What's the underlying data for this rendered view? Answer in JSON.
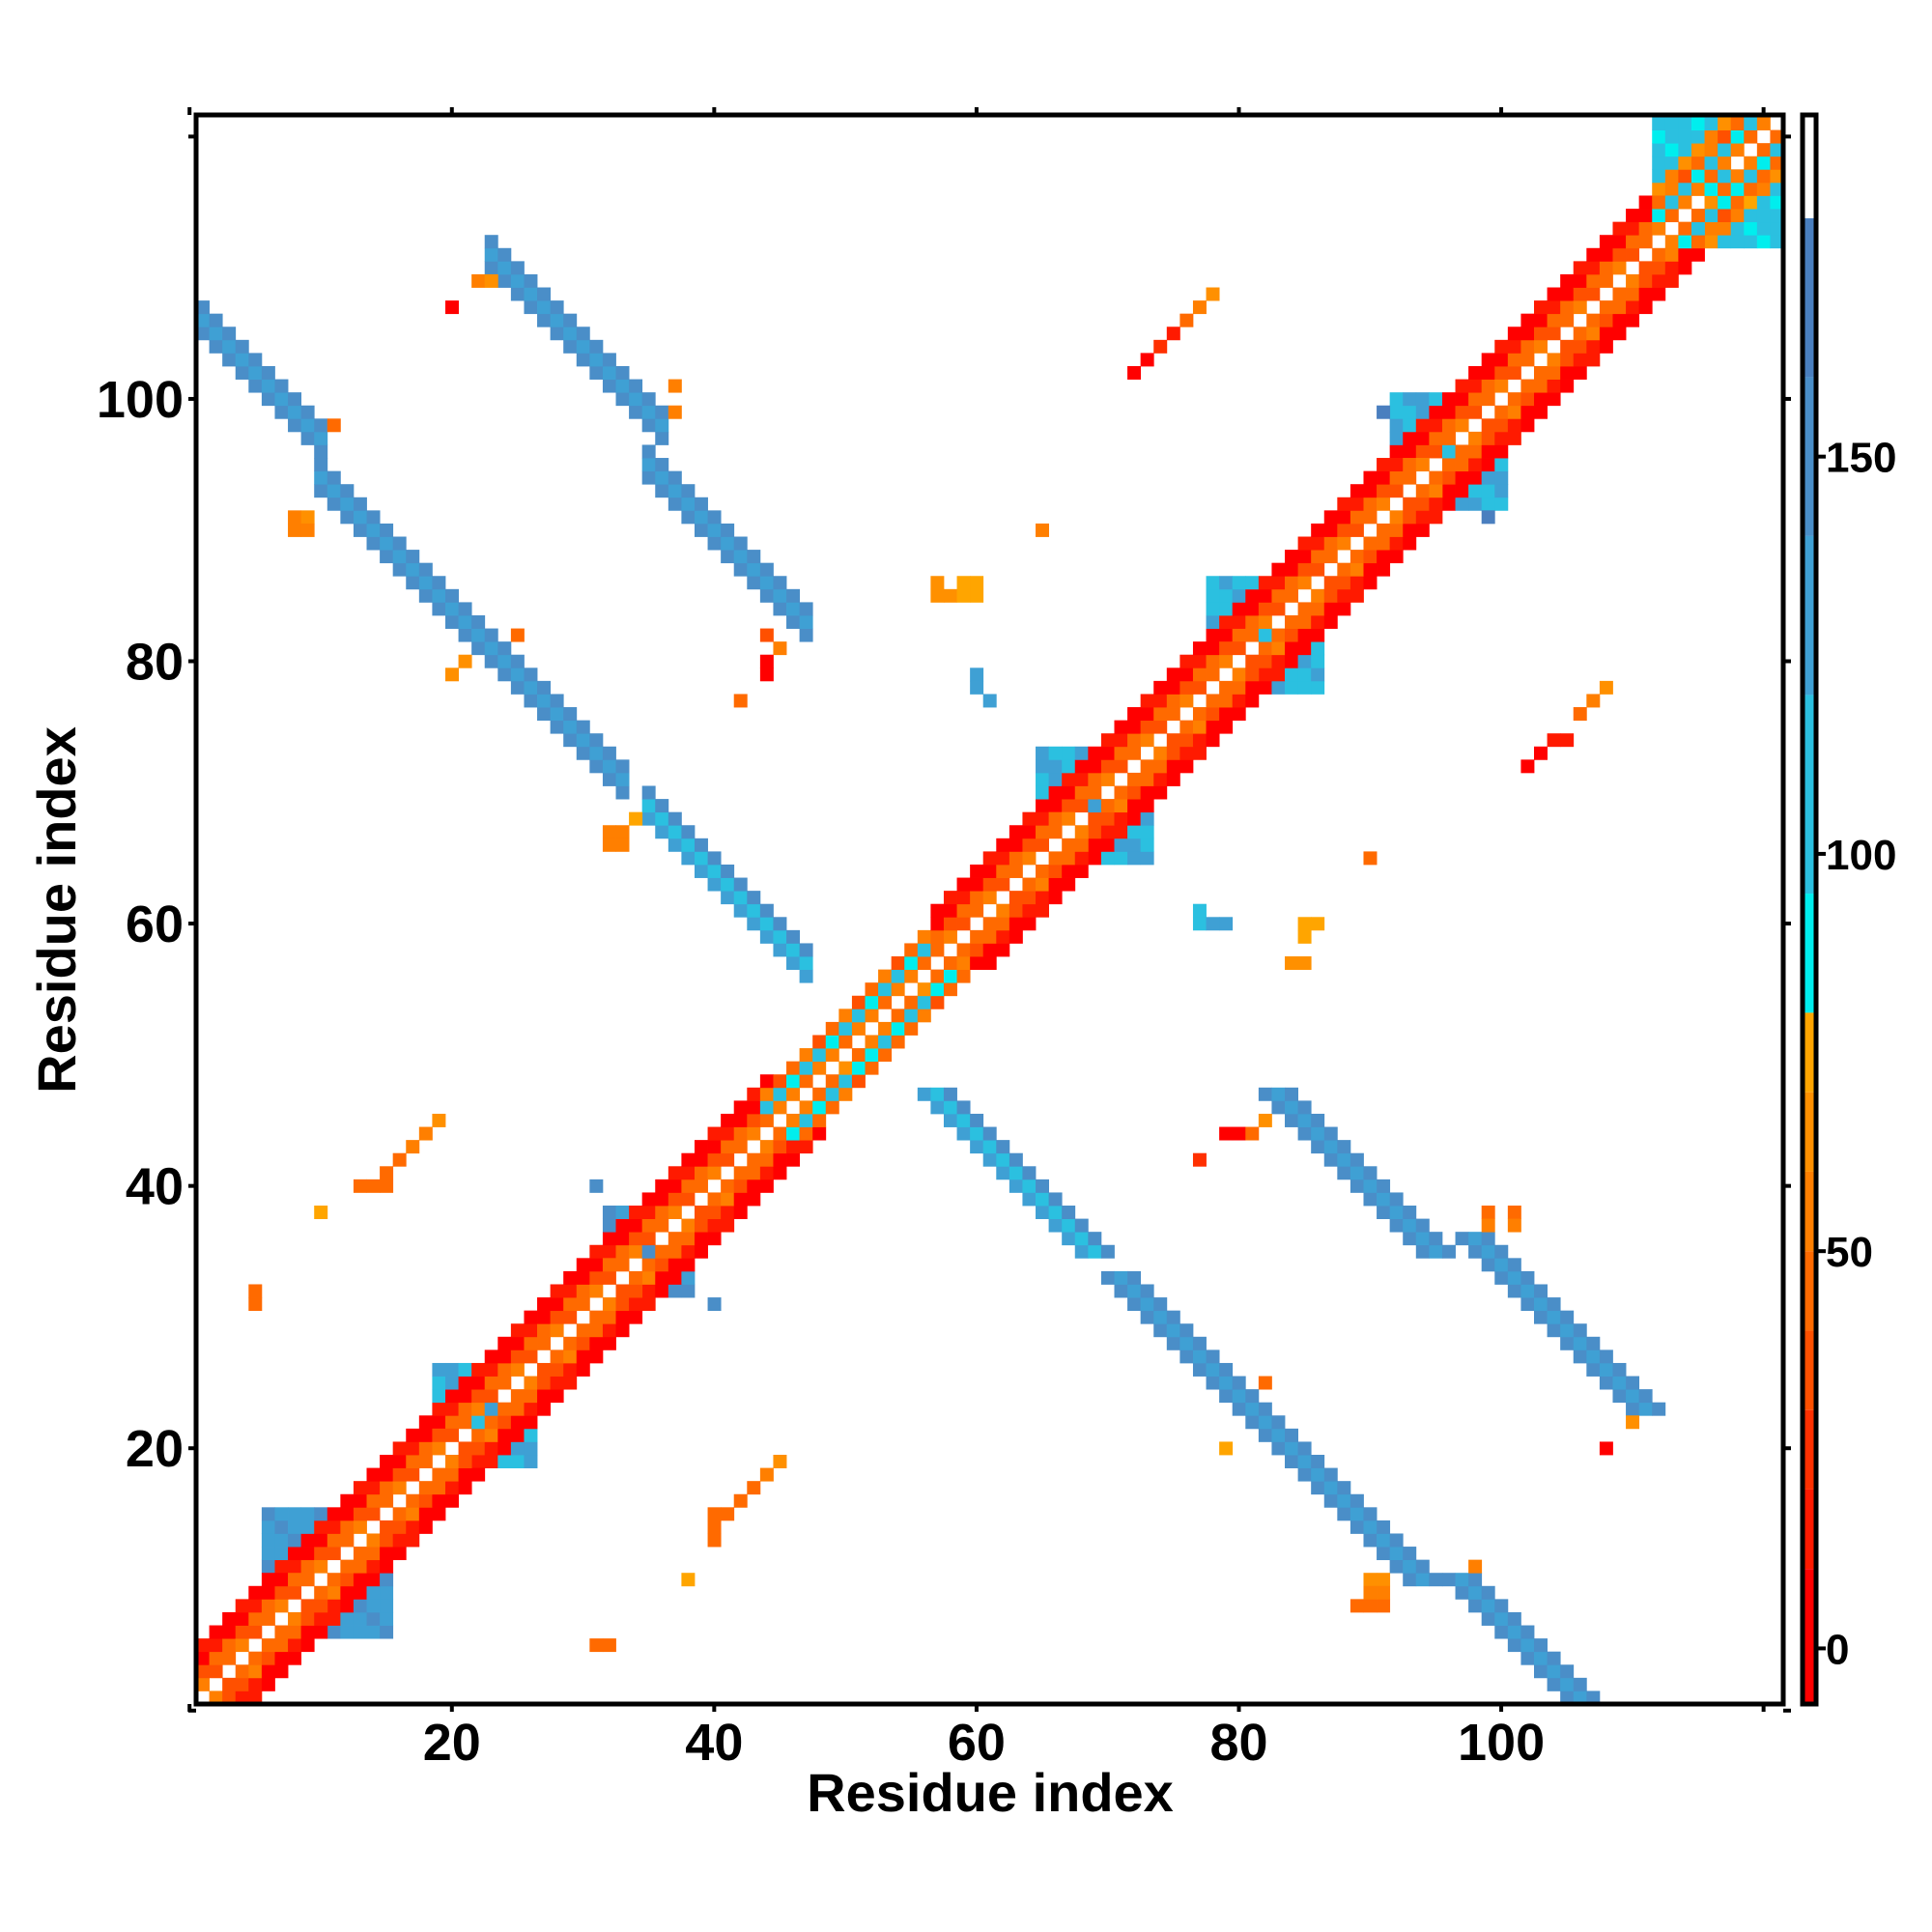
{
  "chart_data": {
    "type": "heatmap",
    "title": "",
    "xlabel": "Residue index",
    "ylabel": "Residue index",
    "n_residues": 121,
    "xlim": [
      0.5,
      121.5
    ],
    "ylim": [
      0.5,
      121.5
    ],
    "x_ticks": [
      "20",
      "40",
      "60",
      "80",
      "100"
    ],
    "y_ticks": [
      "20",
      "40",
      "60",
      "80",
      "100"
    ],
    "tick_values": [
      20,
      40,
      60,
      80,
      100
    ],
    "colorbar": {
      "range": [
        -7,
        193
      ],
      "ticks": [
        "0",
        "50",
        "100",
        "150"
      ],
      "tick_values": [
        0,
        50,
        100,
        150
      ],
      "bins": [
        {
          "min": 180,
          "color": "#ffffff"
        },
        {
          "min": 160,
          "color": "#4a7fbf"
        },
        {
          "min": 140,
          "color": "#4a8ec8"
        },
        {
          "min": 120,
          "color": "#3fa0d4"
        },
        {
          "min": 95,
          "color": "#2bc0e0"
        },
        {
          "min": 80,
          "color": "#00eeee"
        },
        {
          "min": 70,
          "color": "#ffa500"
        },
        {
          "min": 60,
          "color": "#ff9000"
        },
        {
          "min": 50,
          "color": "#ff7f00"
        },
        {
          "min": 40,
          "color": "#ff6a00"
        },
        {
          "min": 30,
          "color": "#ff5000"
        },
        {
          "min": 20,
          "color": "#ff3000"
        },
        {
          "min": 10,
          "color": "#ff1a00"
        },
        {
          "min": -100,
          "color": "#ff0000"
        }
      ]
    },
    "diagonal_segments": [
      {
        "from": 1,
        "to": 44,
        "offset_values": [
          45,
          40,
          8,
          5
        ]
      },
      {
        "from": 44,
        "to": 57,
        "offset_values": [
          50,
          95,
          45,
          null
        ]
      },
      {
        "from": 57,
        "to": 112,
        "offset_values": [
          45,
          40,
          8,
          5
        ]
      },
      {
        "from": 112,
        "to": 121,
        "offset_values": [
          50,
          95,
          45,
          60
        ]
      }
    ],
    "antiparallel_strands": [
      {
        "sum": 107,
        "x_from": 1,
        "x_to": 10,
        "value": 145
      },
      {
        "sum": 104,
        "x_from": 10,
        "x_to": 33,
        "value": 145
      },
      {
        "sum": 104,
        "x_from": 35,
        "x_to": 47,
        "value": 135
      },
      {
        "sum": 134,
        "x_from": 23,
        "x_to": 36,
        "value": 150
      },
      {
        "sum": 130,
        "x_from": 35,
        "x_to": 47,
        "value": 150
      }
    ],
    "near_diagonal_patches": [
      {
        "x": [
          6,
          10
        ],
        "y": [
          11,
          15
        ],
        "value": 120
      },
      {
        "x": [
          19,
          23
        ],
        "y": [
          22,
          26
        ],
        "value": 110
      },
      {
        "x": [
          32,
          35
        ],
        "y": [
          35,
          38
        ],
        "value": 125
      },
      {
        "x": [
          65,
          69
        ],
        "y": [
          69,
          73
        ],
        "value": 110
      },
      {
        "x": [
          78,
          82
        ],
        "y": [
          82,
          86
        ],
        "value": 100
      },
      {
        "x": [
          92,
          96
        ],
        "y": [
          96,
          100
        ],
        "value": 110
      },
      {
        "x": [
          112,
          117
        ],
        "y": [
          116,
          121
        ],
        "value": 92
      }
    ],
    "isolated_contacts": [
      {
        "x": 20,
        "y": 107,
        "value": 5
      },
      {
        "x": 22,
        "y": 109,
        "value": 50
      },
      {
        "x": 23,
        "y": 109,
        "value": 60
      },
      {
        "x": 37,
        "y": 101,
        "value": 55
      },
      {
        "x": 37,
        "y": 99,
        "value": 55
      },
      {
        "x": 11,
        "y": 98,
        "value": 45
      },
      {
        "x": 8,
        "y": 91,
        "value": 50
      },
      {
        "x": 8,
        "y": 90,
        "value": 50
      },
      {
        "x": 9,
        "y": 91,
        "value": 65
      },
      {
        "x": 9,
        "y": 90,
        "value": 50
      },
      {
        "x": 44,
        "y": 82,
        "value": 35
      },
      {
        "x": 44,
        "y": 80,
        "value": 5
      },
      {
        "x": 44,
        "y": 79,
        "value": 5
      },
      {
        "x": 45,
        "y": 81,
        "value": 50
      },
      {
        "x": 42,
        "y": 77,
        "value": 45
      },
      {
        "x": 20,
        "y": 79,
        "value": 65
      },
      {
        "x": 21,
        "y": 80,
        "value": 60
      },
      {
        "x": 25,
        "y": 82,
        "value": 45
      },
      {
        "x": 32,
        "y": 67,
        "value": 50
      },
      {
        "x": 33,
        "y": 67,
        "value": 50
      },
      {
        "x": 32,
        "y": 66,
        "value": 50
      },
      {
        "x": 33,
        "y": 66,
        "value": 50
      },
      {
        "x": 34,
        "y": 68,
        "value": 70
      },
      {
        "x": 57,
        "y": 86,
        "value": 65
      },
      {
        "x": 57,
        "y": 85,
        "value": 65
      },
      {
        "x": 58,
        "y": 85,
        "value": 60
      },
      {
        "x": 59,
        "y": 86,
        "value": 70
      },
      {
        "x": 60,
        "y": 86,
        "value": 70
      },
      {
        "x": 59,
        "y": 85,
        "value": 70
      },
      {
        "x": 60,
        "y": 85,
        "value": 70
      },
      {
        "x": 65,
        "y": 90,
        "value": 50
      },
      {
        "x": 72,
        "y": 102,
        "value": 5
      },
      {
        "x": 73,
        "y": 103,
        "value": 5
      },
      {
        "x": 74,
        "y": 104,
        "value": 20
      },
      {
        "x": 75,
        "y": 105,
        "value": 10
      },
      {
        "x": 76,
        "y": 106,
        "value": 45
      },
      {
        "x": 77,
        "y": 107,
        "value": 55
      },
      {
        "x": 78,
        "y": 108,
        "value": 65
      },
      {
        "x": 102,
        "y": 72,
        "value": 5
      },
      {
        "x": 103,
        "y": 73,
        "value": 5
      },
      {
        "x": 104,
        "y": 74,
        "value": 15
      },
      {
        "x": 105,
        "y": 74,
        "value": 15
      },
      {
        "x": 106,
        "y": 76,
        "value": 45
      },
      {
        "x": 107,
        "y": 77,
        "value": 55
      },
      {
        "x": 108,
        "y": 78,
        "value": 60
      },
      {
        "x": 90,
        "y": 65,
        "value": 45
      },
      {
        "x": 85,
        "y": 60,
        "value": 70
      },
      {
        "x": 86,
        "y": 60,
        "value": 70
      },
      {
        "x": 85,
        "y": 59,
        "value": 70
      },
      {
        "x": 84,
        "y": 57,
        "value": 65
      },
      {
        "x": 85,
        "y": 57,
        "value": 65
      },
      {
        "x": 77,
        "y": 42,
        "value": 25
      },
      {
        "x": 79,
        "y": 44,
        "value": 5
      },
      {
        "x": 80,
        "y": 44,
        "value": 5
      },
      {
        "x": 81,
        "y": 44,
        "value": 45
      },
      {
        "x": 82,
        "y": 45,
        "value": 65
      },
      {
        "x": 99,
        "y": 38,
        "value": 45
      },
      {
        "x": 101,
        "y": 38,
        "value": 45
      },
      {
        "x": 99,
        "y": 37,
        "value": 50
      },
      {
        "x": 101,
        "y": 37,
        "value": 55
      },
      {
        "x": 108,
        "y": 20,
        "value": 5
      },
      {
        "x": 110,
        "y": 22,
        "value": 65
      },
      {
        "x": 98,
        "y": 11,
        "value": 55
      },
      {
        "x": 89,
        "y": 8,
        "value": 45
      },
      {
        "x": 90,
        "y": 8,
        "value": 45
      },
      {
        "x": 91,
        "y": 8,
        "value": 45
      },
      {
        "x": 90,
        "y": 10,
        "value": 65
      },
      {
        "x": 91,
        "y": 10,
        "value": 65
      },
      {
        "x": 90,
        "y": 9,
        "value": 50
      },
      {
        "x": 91,
        "y": 9,
        "value": 50
      },
      {
        "x": 79,
        "y": 20,
        "value": 70
      },
      {
        "x": 82,
        "y": 25,
        "value": 45
      },
      {
        "x": 40,
        "y": 31,
        "value": 150
      },
      {
        "x": 31,
        "y": 40,
        "value": 150
      },
      {
        "x": 38,
        "y": 10,
        "value": 70
      },
      {
        "x": 31,
        "y": 5,
        "value": 45
      },
      {
        "x": 32,
        "y": 5,
        "value": 45
      },
      {
        "x": 40,
        "y": 13,
        "value": 45
      },
      {
        "x": 40,
        "y": 14,
        "value": 45
      },
      {
        "x": 40,
        "y": 15,
        "value": 45
      },
      {
        "x": 41,
        "y": 15,
        "value": 45
      },
      {
        "x": 42,
        "y": 16,
        "value": 45
      },
      {
        "x": 43,
        "y": 17,
        "value": 45
      },
      {
        "x": 44,
        "y": 18,
        "value": 50
      },
      {
        "x": 45,
        "y": 19,
        "value": 65
      },
      {
        "x": 5,
        "y": 32,
        "value": 45
      },
      {
        "x": 5,
        "y": 31,
        "value": 45
      },
      {
        "x": 10,
        "y": 38,
        "value": 70
      },
      {
        "x": 13,
        "y": 40,
        "value": 45
      },
      {
        "x": 14,
        "y": 40,
        "value": 45
      },
      {
        "x": 15,
        "y": 40,
        "value": 45
      },
      {
        "x": 15,
        "y": 41,
        "value": 45
      },
      {
        "x": 16,
        "y": 42,
        "value": 45
      },
      {
        "x": 17,
        "y": 43,
        "value": 50
      },
      {
        "x": 18,
        "y": 44,
        "value": 55
      },
      {
        "x": 19,
        "y": 45,
        "value": 65
      },
      {
        "x": 60,
        "y": 79,
        "value": 120
      },
      {
        "x": 60,
        "y": 78,
        "value": 120
      },
      {
        "x": 61,
        "y": 77,
        "value": 120
      },
      {
        "x": 77,
        "y": 60,
        "value": 100
      },
      {
        "x": 77,
        "y": 61,
        "value": 100
      },
      {
        "x": 78,
        "y": 60,
        "value": 120
      },
      {
        "x": 79,
        "y": 60,
        "value": 120
      },
      {
        "x": 91,
        "y": 99,
        "value": 160
      },
      {
        "x": 99,
        "y": 91,
        "value": 160
      }
    ]
  }
}
